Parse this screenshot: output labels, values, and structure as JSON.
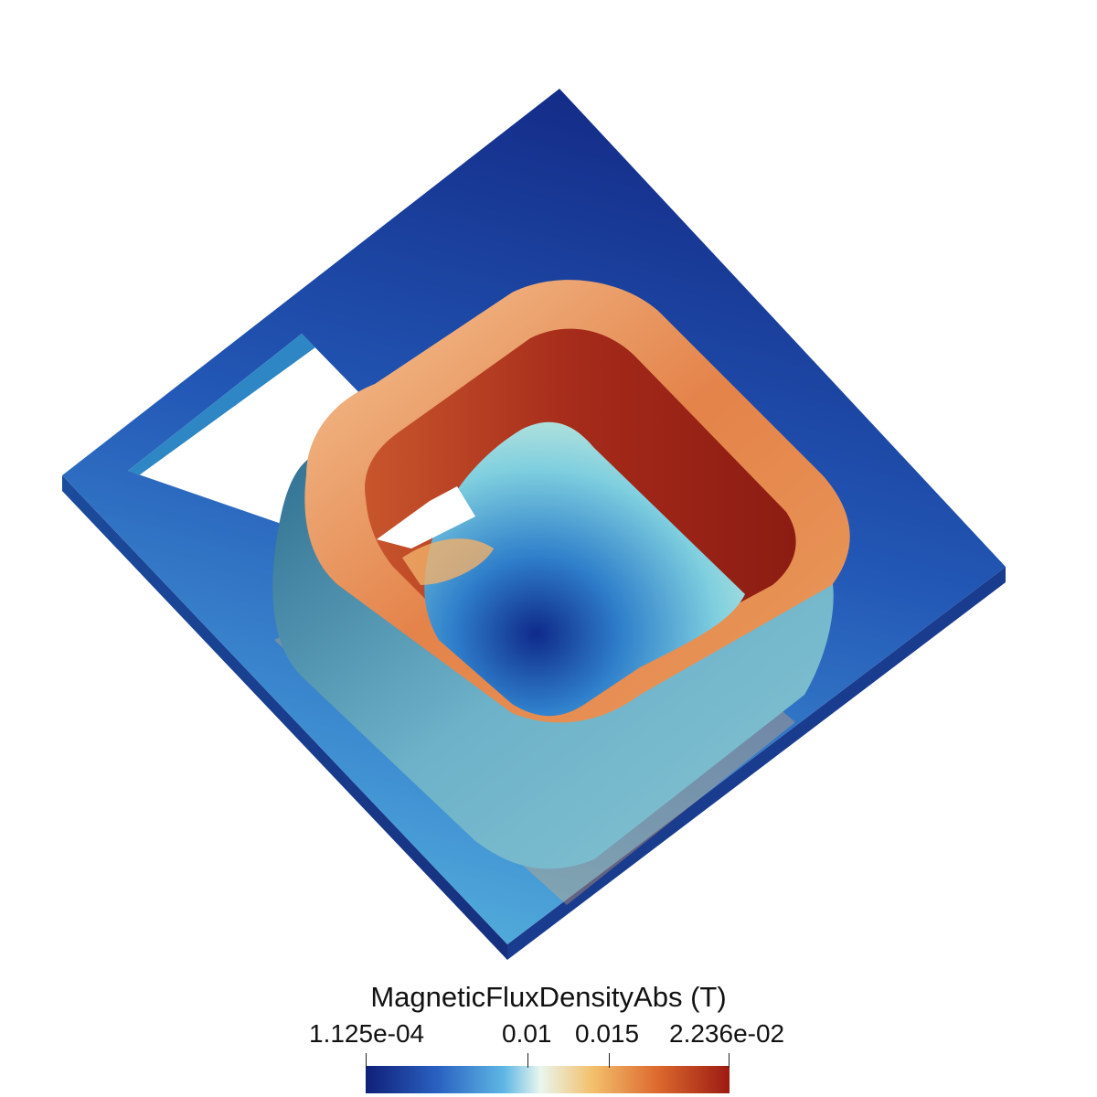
{
  "legend": {
    "title": "MagneticFluxDensityAbs (T)",
    "min_label": "1.125e-04",
    "tick1_label": "0.01",
    "tick2_label": "0.015",
    "max_label": "2.236e-02",
    "range": [
      0.0001125,
      0.02236
    ],
    "ticks": [
      0.0001125,
      0.01,
      0.015,
      0.02236
    ],
    "colormap": [
      "#101f78",
      "#2a62c2",
      "#5fb7e4",
      "#e9f6ee",
      "#f3c16e",
      "#dd6a2e",
      "#9c1a12"
    ]
  },
  "colors": {
    "plate_far": "#132a86",
    "plate_near": "#3f8fd2",
    "coil_top": "#e98c4a",
    "coil_inner": "#9b2418",
    "coil_outer": "#5ea9c8"
  }
}
